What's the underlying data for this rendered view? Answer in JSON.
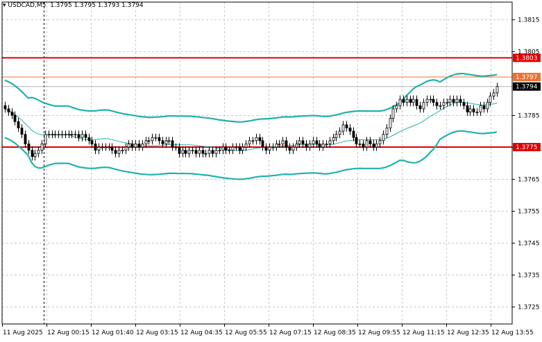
{
  "header": {
    "symbol_timeframe": "USDCAD,M5",
    "ohlc": "1.3795 1.3795 1.3793 1.3794"
  },
  "colors": {
    "background": "#ffffff",
    "grid": "#c8c8c8",
    "candle": "#000000",
    "bollinger": "#20b2aa",
    "support_resistance": "#e00000",
    "level_1797": "#f07030",
    "price_marker_bg": "#000000"
  },
  "chart_data": {
    "type": "candlestick",
    "title": "USDCAD,M5",
    "ylim": [
      1.37195,
      1.38205
    ],
    "y_ticks": [
      "1.3815",
      "1.3805",
      "1.3785",
      "1.3775",
      "1.3765",
      "1.3755",
      "1.3745",
      "1.3735",
      "1.3725"
    ],
    "x_ticks": [
      "11 Aug 2025",
      "12 Aug 00:15",
      "12 Aug 01:40",
      "12 Aug 03:15",
      "12 Aug 04:35",
      "12 Aug 05:55",
      "12 Aug 07:15",
      "12 Aug 08:35",
      "12 Aug 09:55",
      "12 Aug 11:15",
      "12 Aug 12:35",
      "12 Aug 13:55"
    ],
    "grid": true,
    "horizontal_levels": [
      {
        "value": 1.3803,
        "label": "1.3803",
        "color": "#e00000"
      },
      {
        "value": 1.3797,
        "label": "1.3797",
        "color": "#f07030"
      },
      {
        "value": 1.3775,
        "label": "1.3775",
        "color": "#e00000"
      }
    ],
    "current_price": {
      "value": 1.3794,
      "label": "1.3794"
    },
    "closes": [
      1.3787,
      1.3786,
      1.3785,
      1.3783,
      1.3781,
      1.3779,
      1.3776,
      1.3774,
      1.3772,
      1.3773,
      1.3774,
      1.3776,
      1.3779,
      1.3779,
      1.3779,
      1.3779,
      1.3779,
      1.3779,
      1.3779,
      1.3779,
      1.3779,
      1.3779,
      1.3778,
      1.3779,
      1.3778,
      1.3777,
      1.3776,
      1.3774,
      1.3775,
      1.3775,
      1.3775,
      1.3775,
      1.3774,
      1.3773,
      1.3774,
      1.3774,
      1.3775,
      1.3776,
      1.3775,
      1.3776,
      1.3775,
      1.3776,
      1.3777,
      1.3777,
      1.3778,
      1.3778,
      1.3777,
      1.3776,
      1.3777,
      1.3777,
      1.3775,
      1.3775,
      1.3773,
      1.3774,
      1.3773,
      1.3774,
      1.3774,
      1.3773,
      1.3774,
      1.3773,
      1.3773,
      1.3774,
      1.3773,
      1.3774,
      1.3774,
      1.3775,
      1.3774,
      1.3774,
      1.3775,
      1.3775,
      1.3774,
      1.3775,
      1.3776,
      1.3777,
      1.3777,
      1.3778,
      1.3777,
      1.3775,
      1.3774,
      1.3775,
      1.3775,
      1.3776,
      1.3776,
      1.3777,
      1.3775,
      1.3774,
      1.3775,
      1.3776,
      1.3777,
      1.3776,
      1.3775,
      1.3776,
      1.3777,
      1.3776,
      1.3775,
      1.3776,
      1.3776,
      1.3777,
      1.3778,
      1.3779,
      1.378,
      1.3782,
      1.3781,
      1.378,
      1.3778,
      1.3776,
      1.3776,
      1.3775,
      1.3777,
      1.3776,
      1.3775,
      1.3776,
      1.3777,
      1.3779,
      1.3781,
      1.3784,
      1.3787,
      1.3788,
      1.379,
      1.3789,
      1.379,
      1.3789,
      1.379,
      1.3788,
      1.3787,
      1.3789,
      1.379,
      1.379,
      1.3789,
      1.3788,
      1.3788,
      1.3789,
      1.3789,
      1.379,
      1.3789,
      1.379,
      1.3789,
      1.3788,
      1.3786,
      1.3787,
      1.3786,
      1.3786,
      1.3788,
      1.3787,
      1.3789,
      1.3791,
      1.3792,
      1.3794
    ]
  }
}
